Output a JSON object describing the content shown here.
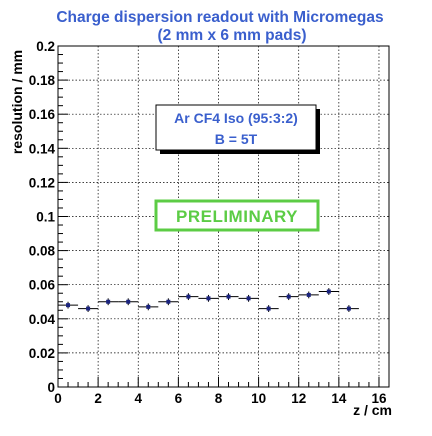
{
  "chart_data": {
    "type": "scatter",
    "title": "Charge dispersion  readout with Micromegas",
    "subtitle": "(2 mm x 6 mm pads)",
    "xlabel": "z / cm",
    "ylabel": "resolution / mm",
    "xlim": [
      0,
      16.5
    ],
    "ylim": [
      0,
      0.2
    ],
    "xticks": [
      0,
      2,
      4,
      6,
      8,
      10,
      12,
      14,
      16
    ],
    "xtick_labels": [
      "0",
      "2",
      "4",
      "6",
      "8",
      "10",
      "12",
      "14",
      "16"
    ],
    "yticks": [
      0,
      0.02,
      0.04,
      0.06,
      0.08,
      0.1,
      0.12,
      0.14,
      0.16,
      0.18,
      0.2
    ],
    "ytick_labels": [
      "0",
      "0.02",
      "0.04",
      "0.06",
      "0.08",
      "0.1",
      "0.12",
      "0.14",
      "0.16",
      "0.18",
      "0.2"
    ],
    "grid": true,
    "x": [
      0.5,
      1.5,
      2.5,
      3.5,
      4.5,
      5.5,
      6.5,
      7.5,
      8.5,
      9.5,
      10.5,
      11.5,
      12.5,
      13.5,
      14.5
    ],
    "y": [
      0.048,
      0.046,
      0.05,
      0.05,
      0.047,
      0.05,
      0.053,
      0.052,
      0.053,
      0.052,
      0.046,
      0.053,
      0.054,
      0.056,
      0.046
    ],
    "yerr": [
      0.002,
      0.002,
      0.002,
      0.002,
      0.002,
      0.002,
      0.002,
      0.002,
      0.002,
      0.002,
      0.002,
      0.002,
      0.002,
      0.002,
      0.002
    ],
    "xerr": 0.5,
    "annotations": [
      {
        "name": "gas-info",
        "lines": [
          "Ar CF4 Iso (95:3:2)",
          "B = 5T"
        ]
      },
      {
        "name": "preliminary",
        "text": "PRELIMINARY"
      }
    ],
    "marker_color": "#1a237e",
    "title_color": "#3a5fcd",
    "preliminary_color": "#5ccc45"
  }
}
